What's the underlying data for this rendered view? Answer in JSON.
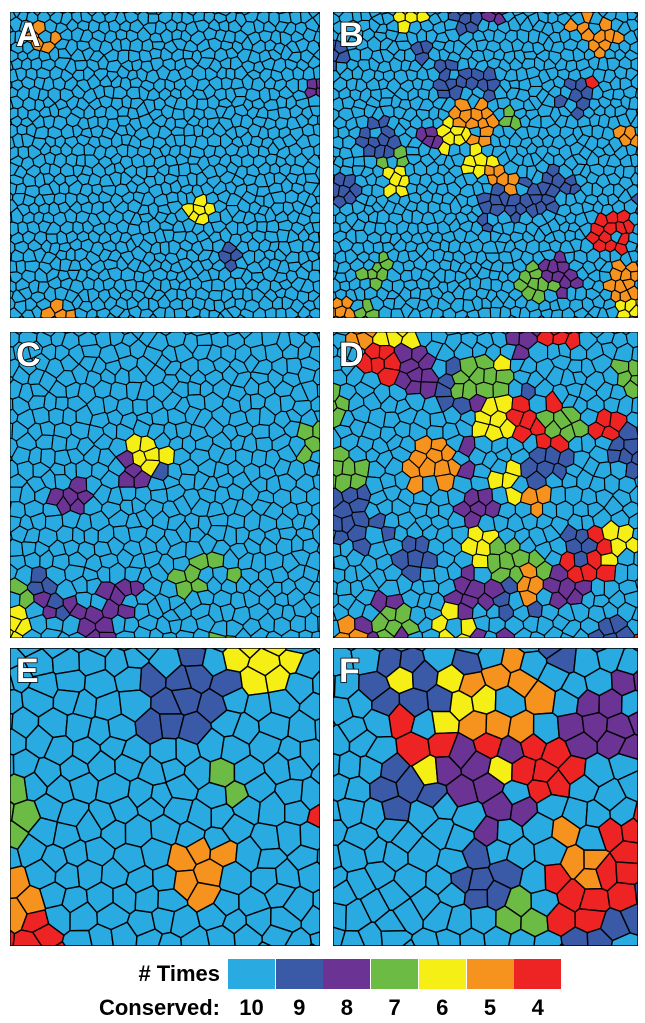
{
  "panels": [
    {
      "label": "A",
      "scale": "fine",
      "density": 0.02
    },
    {
      "label": "B",
      "scale": "fine",
      "density": 0.14
    },
    {
      "label": "C",
      "scale": "medium",
      "density": 0.1
    },
    {
      "label": "D",
      "scale": "medium",
      "density": 0.34
    },
    {
      "label": "E",
      "scale": "coarse",
      "density": 0.14
    },
    {
      "label": "F",
      "scale": "coarse",
      "density": 0.42
    }
  ],
  "legend": {
    "title_line1": "# Times",
    "title_line2": "Conserved:",
    "items": [
      {
        "label": "10",
        "color": "#29abe2"
      },
      {
        "label": "9",
        "color": "#3a5aa8"
      },
      {
        "label": "8",
        "color": "#6a3394"
      },
      {
        "label": "7",
        "color": "#6bbb45"
      },
      {
        "label": "6",
        "color": "#f5ef15"
      },
      {
        "label": "5",
        "color": "#f6921e"
      },
      {
        "label": "4",
        "color": "#ee2424"
      }
    ]
  }
}
